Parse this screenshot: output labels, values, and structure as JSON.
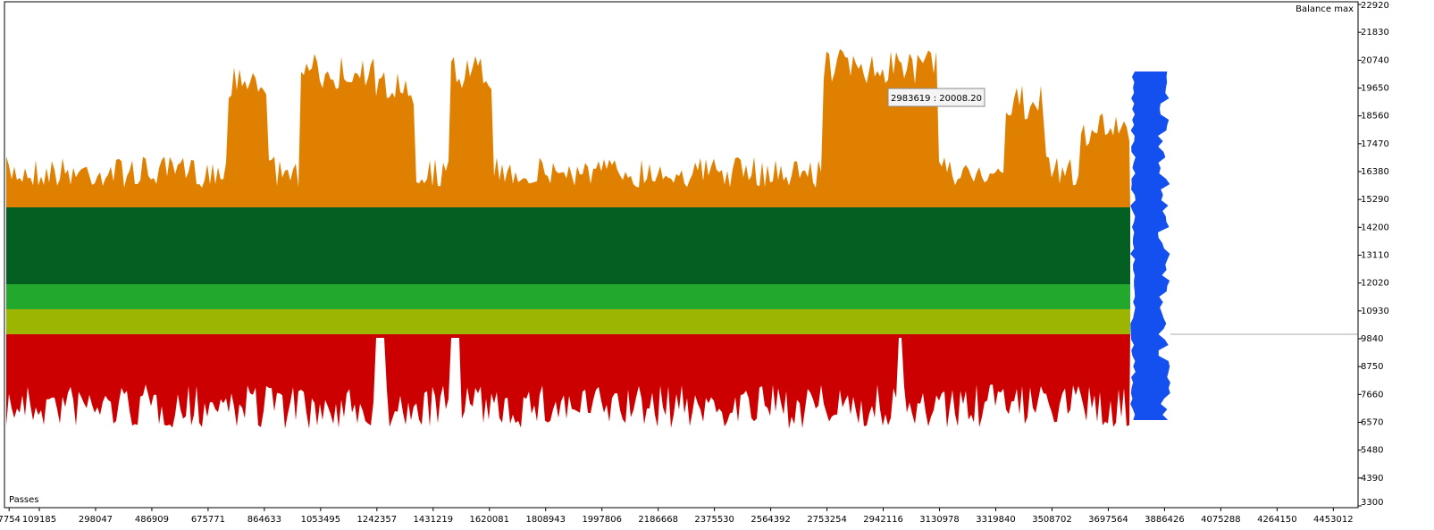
{
  "chart_data": {
    "type": "scatter",
    "y_label": "Balance max",
    "x_label": "Passes",
    "annotation": "2983619 : 20008.20",
    "xlim": [
      -7800,
      4536000
    ],
    "xticks": [
      7754,
      109185,
      298047,
      486909,
      675771,
      864633,
      1053495,
      1242357,
      1431219,
      1620081,
      1808943,
      1997806,
      2186668,
      2375530,
      2564392,
      2753254,
      2942116,
      3130978,
      3319840,
      3508702,
      3697564,
      3886426,
      4075288,
      4264150,
      4453012
    ],
    "ylim": [
      3300,
      22920
    ],
    "yticks": [
      3300,
      4390,
      5480,
      6570,
      7660,
      8750,
      9840,
      10930,
      12020,
      13110,
      14200,
      15290,
      16380,
      17470,
      18560,
      19650,
      20740,
      21830,
      22920
    ]
  }
}
